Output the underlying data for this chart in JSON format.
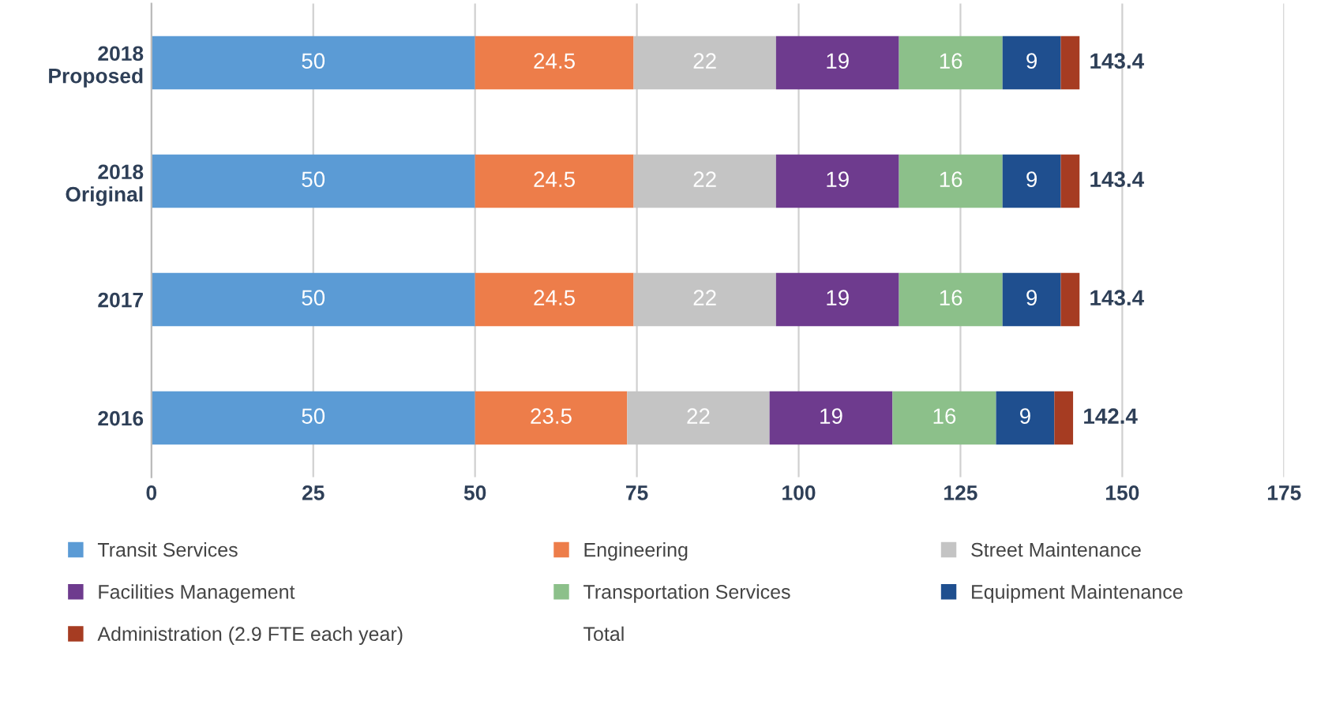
{
  "chart_data": {
    "type": "bar",
    "orientation": "horizontal",
    "stacked": true,
    "categories": [
      "2018\nProposed",
      "2018\nOriginal",
      "2017",
      "2016"
    ],
    "series": [
      {
        "name": "Transit Services",
        "color": "#5b9bd5",
        "values": [
          50,
          50,
          50,
          50
        ],
        "value_labels": [
          "50",
          "50",
          "50",
          "50"
        ]
      },
      {
        "name": "Engineering",
        "color": "#ed7d4a",
        "values": [
          24.5,
          24.5,
          24.5,
          23.5
        ],
        "value_labels": [
          "24.5",
          "24.5",
          "24.5",
          "23.5"
        ]
      },
      {
        "name": "Street Maintenance",
        "color": "#c4c4c4",
        "values": [
          22,
          22,
          22,
          22
        ],
        "value_labels": [
          "22",
          "22",
          "22",
          "22"
        ]
      },
      {
        "name": "Facilities Management",
        "color": "#6e3b8e",
        "values": [
          19,
          19,
          19,
          19
        ],
        "value_labels": [
          "19",
          "19",
          "19",
          "19"
        ]
      },
      {
        "name": "Transportation Services",
        "color": "#8cc08a",
        "values": [
          16,
          16,
          16,
          16
        ],
        "value_labels": [
          "16",
          "16",
          "16",
          "16"
        ]
      },
      {
        "name": "Equipment Maintenance",
        "color": "#1f4f8f",
        "values": [
          9,
          9,
          9,
          9
        ],
        "value_labels": [
          "9",
          "9",
          "9",
          "9"
        ]
      },
      {
        "name": "Administration (2.9 FTE each year)",
        "color": "#a63c22",
        "values": [
          2.9,
          2.9,
          2.9,
          2.9
        ],
        "value_labels": [
          null,
          null,
          null,
          null
        ]
      },
      {
        "name": "Total",
        "color": null,
        "values": [
          null,
          null,
          null,
          null
        ]
      }
    ],
    "totals": [
      "143.4",
      "143.4",
      "143.4",
      "142.4"
    ],
    "xlim": [
      0,
      175
    ],
    "xticks": [
      0,
      25,
      50,
      75,
      100,
      125,
      150,
      175
    ],
    "grid": "x",
    "legend": "bottom"
  }
}
